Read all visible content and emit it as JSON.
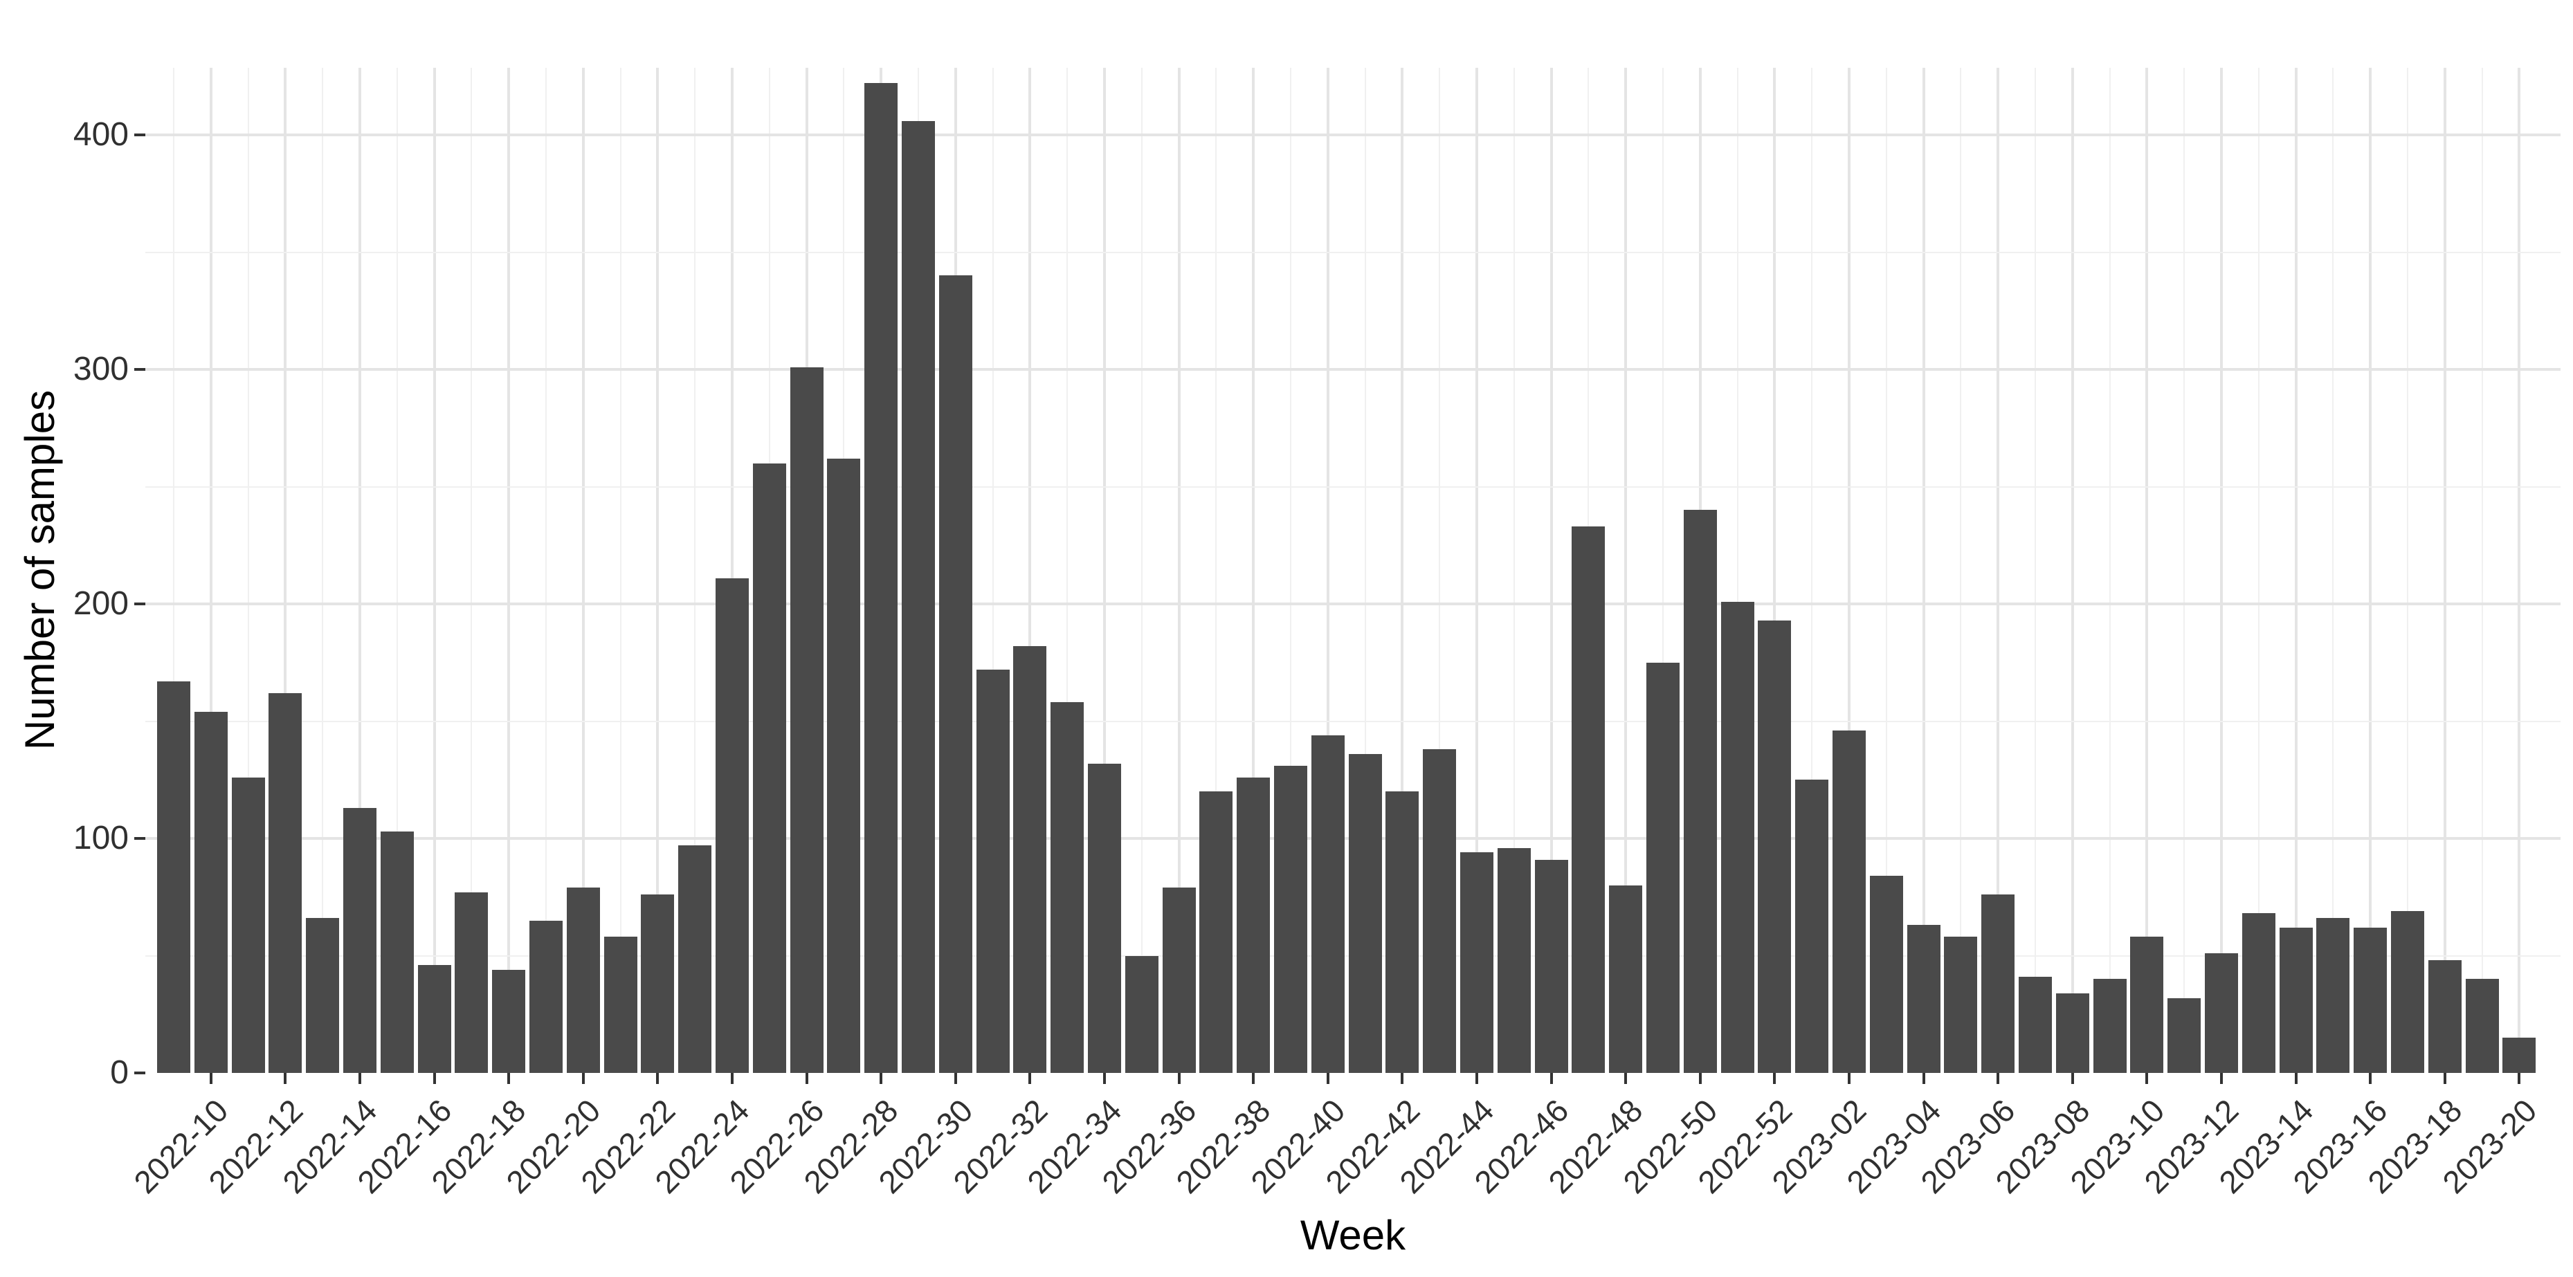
{
  "chart_data": {
    "type": "bar",
    "title": "",
    "xlabel": "Week",
    "ylabel": "Number of samples",
    "categories": [
      "2022-09",
      "2022-10",
      "2022-11",
      "2022-12",
      "2022-13",
      "2022-14",
      "2022-15",
      "2022-16",
      "2022-17",
      "2022-18",
      "2022-19",
      "2022-20",
      "2022-21",
      "2022-22",
      "2022-23",
      "2022-24",
      "2022-25",
      "2022-26",
      "2022-27",
      "2022-28",
      "2022-29",
      "2022-30",
      "2022-31",
      "2022-32",
      "2022-33",
      "2022-34",
      "2022-35",
      "2022-36",
      "2022-37",
      "2022-38",
      "2022-39",
      "2022-40",
      "2022-41",
      "2022-42",
      "2022-43",
      "2022-44",
      "2022-45",
      "2022-46",
      "2022-47",
      "2022-48",
      "2022-49",
      "2022-50",
      "2022-51",
      "2022-52",
      "2023-01",
      "2023-02",
      "2023-03",
      "2023-04",
      "2023-05",
      "2023-06",
      "2023-07",
      "2023-08",
      "2023-09",
      "2023-10",
      "2023-11",
      "2023-12",
      "2023-13",
      "2023-14",
      "2023-15",
      "2023-16",
      "2023-17",
      "2023-18",
      "2023-19",
      "2023-20"
    ],
    "values": [
      167,
      154,
      126,
      162,
      66,
      113,
      103,
      46,
      77,
      44,
      65,
      79,
      58,
      76,
      97,
      211,
      260,
      301,
      262,
      422,
      406,
      340,
      172,
      182,
      158,
      132,
      50,
      79,
      120,
      126,
      131,
      144,
      136,
      120,
      138,
      94,
      96,
      91,
      233,
      80,
      175,
      240,
      201,
      193,
      125,
      146,
      84,
      63,
      58,
      76,
      41,
      34,
      40,
      58,
      32,
      51,
      68,
      62,
      66,
      62,
      69,
      48,
      40,
      15
    ],
    "ylim": [
      0,
      429
    ],
    "yticks": [
      0,
      100,
      200,
      300,
      400
    ],
    "y_minor_gridlines": [
      50,
      150,
      250,
      350
    ],
    "x_ticks_labeled": [
      "2022-10",
      "2022-12",
      "2022-14",
      "2022-16",
      "2022-18",
      "2022-20",
      "2022-22",
      "2022-24",
      "2022-26",
      "2022-28",
      "2022-30",
      "2022-32",
      "2022-34",
      "2022-36",
      "2022-38",
      "2022-40",
      "2022-42",
      "2022-44",
      "2022-46",
      "2022-48",
      "2022-50",
      "2022-52",
      "2023-02",
      "2023-04",
      "2023-06",
      "2023-08",
      "2023-10",
      "2023-12",
      "2023-14",
      "2023-16",
      "2023-18",
      "2023-20"
    ],
    "legend": "none",
    "grid": "major+minor",
    "colors": {
      "bar": "#4a4a4a",
      "major_grid": "#e4e4e4",
      "minor_grid": "#f0f0f0",
      "tick_mark": "#333333",
      "tick_label": "#303030",
      "axis_title": "#000000",
      "background": "#ffffff"
    }
  }
}
